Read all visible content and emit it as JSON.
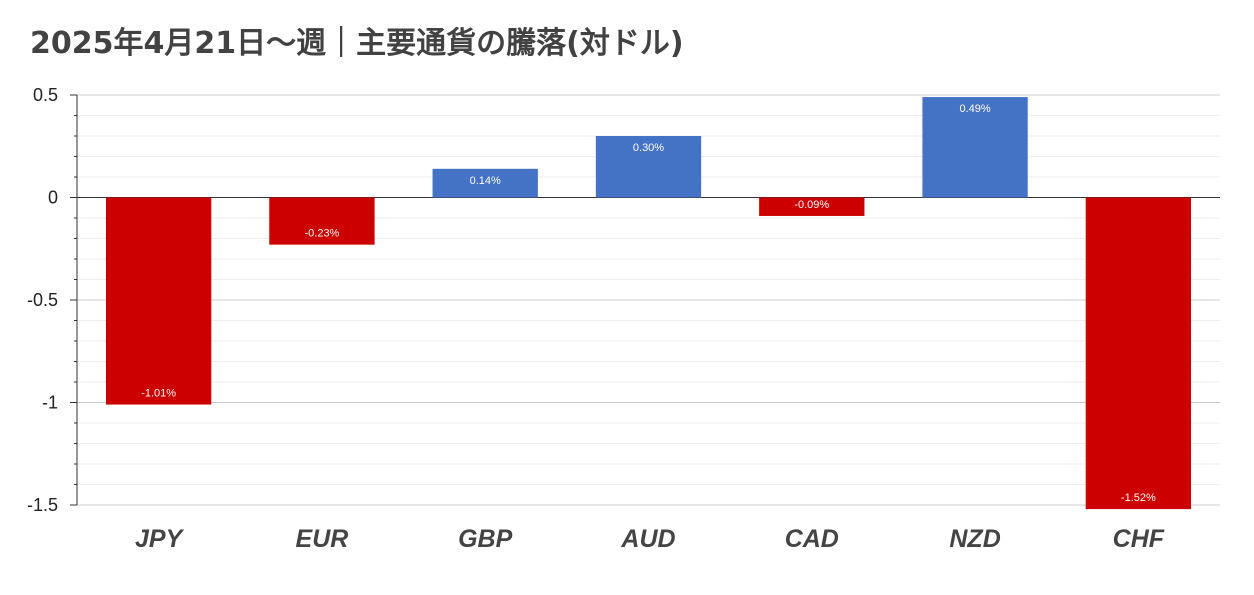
{
  "chart_data": {
    "type": "bar",
    "title": "2025年4月21日～週｜主要通貨の騰落(対ドル)",
    "xlabel": "",
    "ylabel": "",
    "categories": [
      "JPY",
      "EUR",
      "GBP",
      "AUD",
      "CAD",
      "NZD",
      "CHF"
    ],
    "values": [
      -1.01,
      -0.23,
      0.14,
      0.3,
      -0.09,
      0.49,
      -1.52
    ],
    "data_labels": [
      "-1.01%",
      "-0.23%",
      "0.14%",
      "0.30%",
      "-0.09%",
      "0.49%",
      "-1.52%"
    ],
    "yticks": [
      "0.5",
      "0",
      "-0.5",
      "-1",
      "-1.5"
    ],
    "ylim": [
      -1.5,
      0.5
    ],
    "grid": true,
    "colors": {
      "positive": "#4472c4",
      "negative": "#cc0000"
    }
  }
}
